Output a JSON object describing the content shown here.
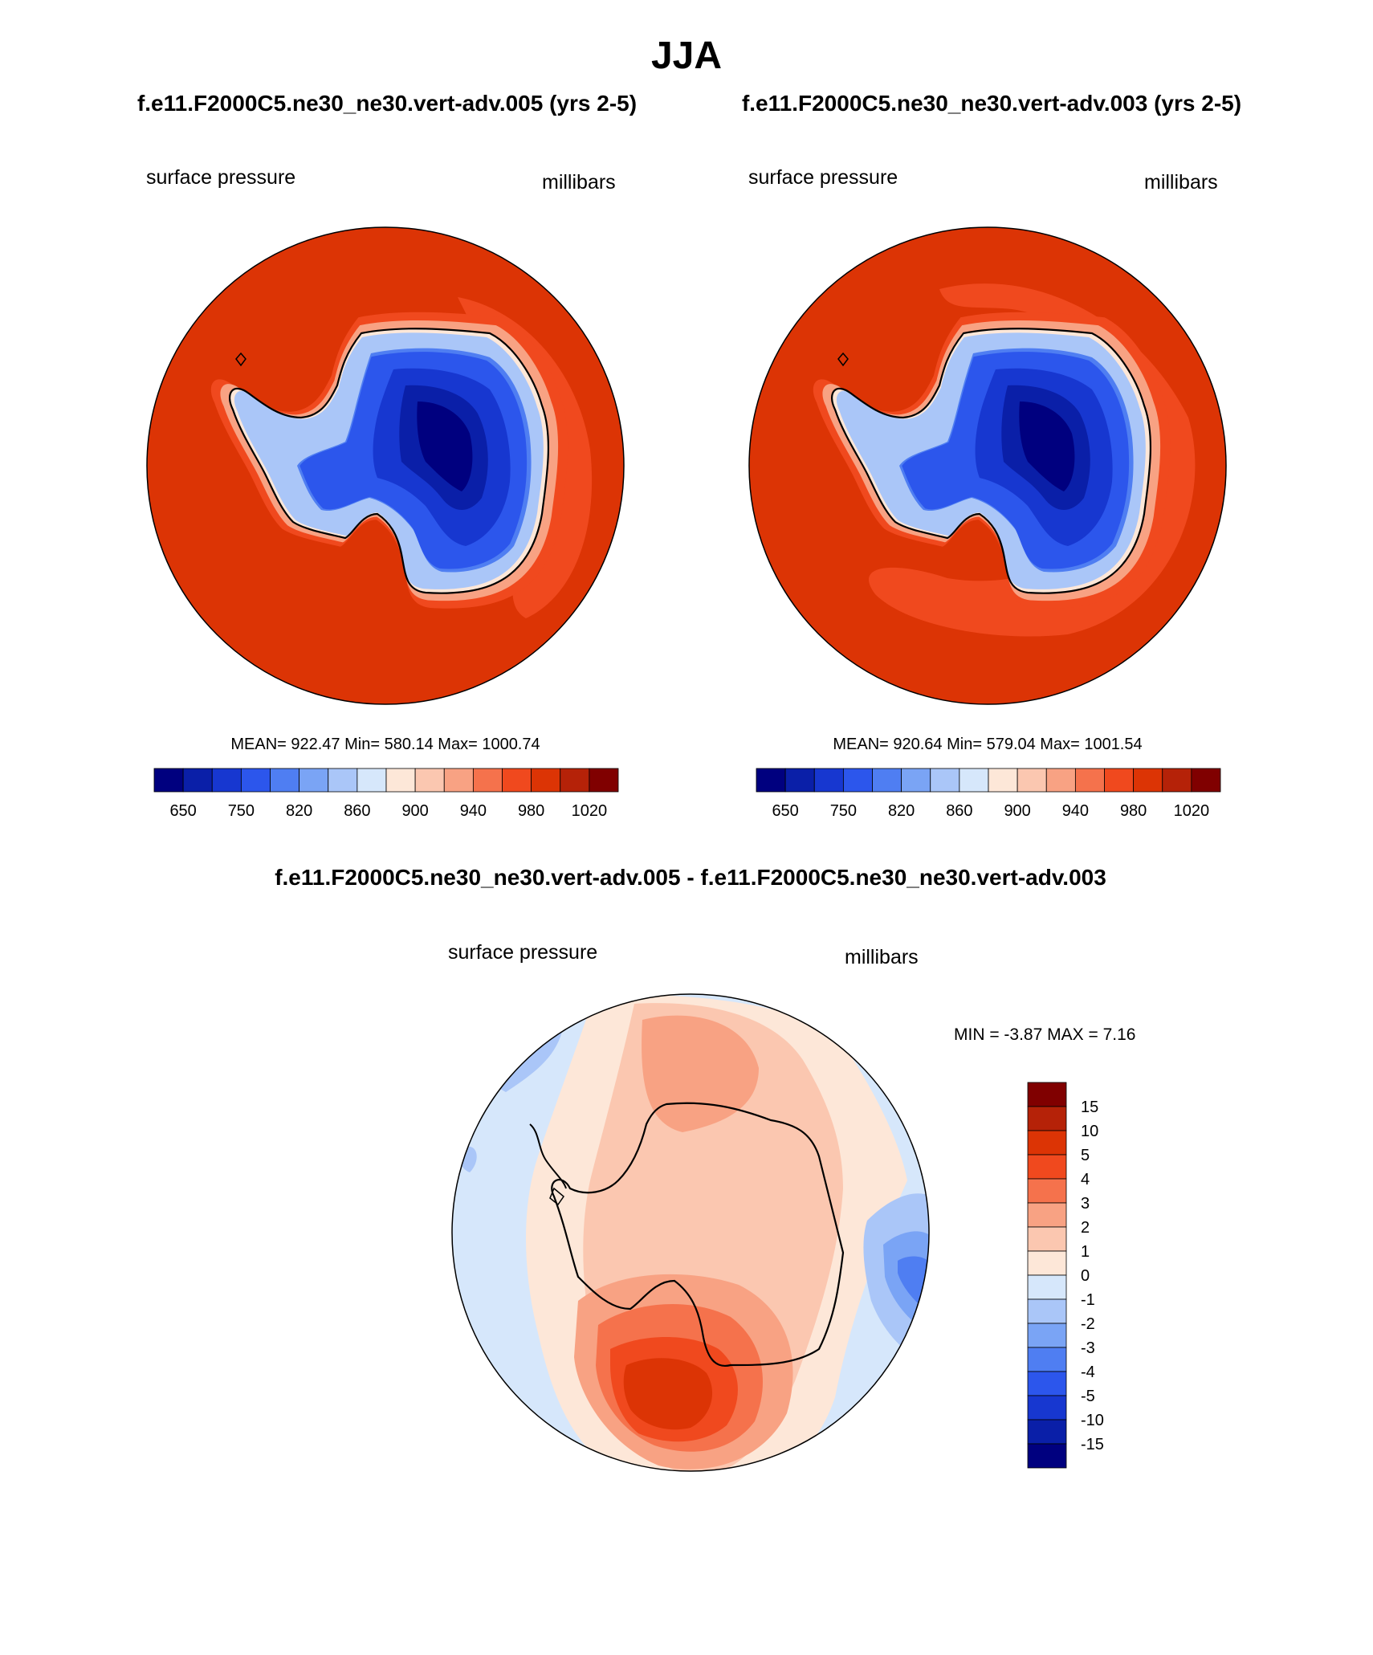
{
  "season": "JJA",
  "panels": [
    {
      "case_title": "f.e11.F2000C5.ne30_ne30.vert-adv.005 (yrs 2-5)",
      "variable": "surface pressure",
      "units": "millibars",
      "stats": {
        "mean": "922.47",
        "min": "580.14",
        "max": "1000.74"
      },
      "stats_text": "MEAN= 922.47  Min= 580.14  Max= 1000.74"
    },
    {
      "case_title": "f.e11.F2000C5.ne30_ne30.vert-adv.003 (yrs 2-5)",
      "variable": "surface pressure",
      "units": "millibars",
      "stats": {
        "mean": "920.64",
        "min": "579.04",
        "max": "1001.54"
      },
      "stats_text": "MEAN= 920.64  Min= 579.04  Max= 1001.54"
    }
  ],
  "colorbar": {
    "colors": [
      "#00007f",
      "#0a1fa8",
      "#1737d0",
      "#2c56ec",
      "#4f7ef2",
      "#7aa4f5",
      "#aac6f8",
      "#d6e7fb",
      "#fde7d8",
      "#fbc7b0",
      "#f8a283",
      "#f5724c",
      "#f0491e",
      "#dc3405",
      "#b52208",
      "#800000"
    ],
    "labels": [
      "650",
      "750",
      "820",
      "860",
      "900",
      "940",
      "980",
      "1020"
    ]
  },
  "difference": {
    "title": "f.e11.F2000C5.ne30_ne30.vert-adv.005 - f.e11.F2000C5.ne30_ne30.vert-adv.003",
    "variable": "surface pressure",
    "units": "millibars",
    "stats": {
      "min": "-3.87",
      "max": "7.16"
    },
    "stats_text": "MIN =  -3.87 MAX =   7.16",
    "colorbar": {
      "colors": [
        "#800000",
        "#b52208",
        "#dc3405",
        "#f0491e",
        "#f5724c",
        "#f8a283",
        "#fbc7b0",
        "#fde7d8",
        "#d6e7fb",
        "#aac6f8",
        "#7aa4f5",
        "#4f7ef2",
        "#2c56ec",
        "#1737d0",
        "#0a1fa8",
        "#00007f"
      ],
      "labels": [
        "15",
        "10",
        "5",
        "4",
        "3",
        "2",
        "1",
        "0",
        "-1",
        "-2",
        "-3",
        "-4",
        "-5",
        "-10",
        "-15"
      ]
    }
  },
  "chart_data": {
    "type": "contour-map",
    "projection": "south-polar-stereographic",
    "season": "JJA",
    "variable": "surface pressure",
    "units": "millibars",
    "case_a": {
      "name": "f.e11.F2000C5.ne30_ne30.vert-adv.005",
      "years": "2-5",
      "mean": 922.47,
      "min": 580.14,
      "max": 1000.74
    },
    "case_b": {
      "name": "f.e11.F2000C5.ne30_ne30.vert-adv.003",
      "years": "2-5",
      "mean": 920.64,
      "min": 579.04,
      "max": 1001.54
    },
    "contour_levels": [
      650,
      700,
      750,
      800,
      820,
      840,
      860,
      880,
      900,
      920,
      940,
      960,
      980,
      1000,
      1020
    ],
    "difference": {
      "min": -3.87,
      "max": 7.16,
      "levels": [
        -15,
        -10,
        -5,
        -4,
        -3,
        -2,
        -1,
        0,
        1,
        2,
        3,
        4,
        5,
        10,
        15
      ]
    }
  }
}
